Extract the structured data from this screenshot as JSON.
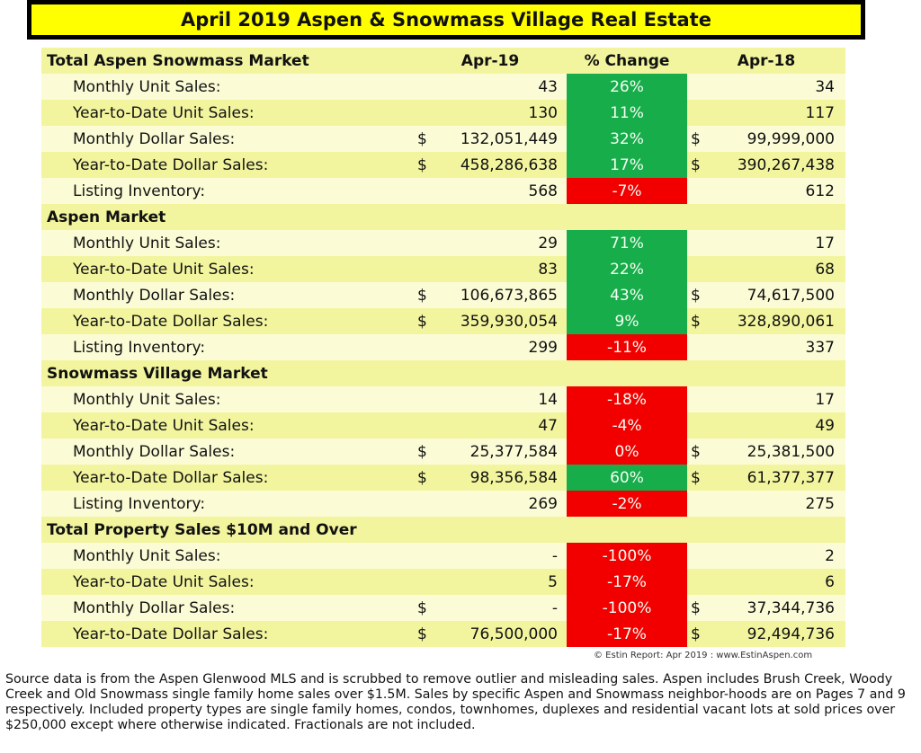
{
  "title": "April 2019 Aspen & Snowmass Village Real Estate",
  "columns": {
    "current": "Apr-19",
    "change": "% Change",
    "prior": "Apr-18"
  },
  "colors": {
    "up": "#17ad4a",
    "down": "#f20000",
    "title_bg": "#ffff00"
  },
  "sections": [
    {
      "name": "Total Aspen Snowmass Market",
      "rows": [
        {
          "label": "Monthly Unit Sales:",
          "cur_dollar": "",
          "cur": "43",
          "change": "26%",
          "dir": "up",
          "prior_dollar": "",
          "prior": "34"
        },
        {
          "label": "Year-to-Date Unit Sales:",
          "cur_dollar": "",
          "cur": "130",
          "change": "11%",
          "dir": "up",
          "prior_dollar": "",
          "prior": "117"
        },
        {
          "label": "Monthly Dollar Sales:",
          "cur_dollar": "$",
          "cur": "132,051,449",
          "change": "32%",
          "dir": "up",
          "prior_dollar": "$",
          "prior": "99,999,000"
        },
        {
          "label": "Year-to-Date Dollar Sales:",
          "cur_dollar": "$",
          "cur": "458,286,638",
          "change": "17%",
          "dir": "up",
          "prior_dollar": "$",
          "prior": "390,267,438"
        },
        {
          "label": "Listing Inventory:",
          "cur_dollar": "",
          "cur": "568",
          "change": "-7%",
          "dir": "down",
          "prior_dollar": "",
          "prior": "612"
        }
      ]
    },
    {
      "name": "Aspen Market",
      "rows": [
        {
          "label": "Monthly Unit Sales:",
          "cur_dollar": "",
          "cur": "29",
          "change": "71%",
          "dir": "up",
          "prior_dollar": "",
          "prior": "17"
        },
        {
          "label": "Year-to-Date Unit Sales:",
          "cur_dollar": "",
          "cur": "83",
          "change": "22%",
          "dir": "up",
          "prior_dollar": "",
          "prior": "68"
        },
        {
          "label": "Monthly Dollar Sales:",
          "cur_dollar": "$",
          "cur": "106,673,865",
          "change": "43%",
          "dir": "up",
          "prior_dollar": "$",
          "prior": "74,617,500"
        },
        {
          "label": "Year-to-Date Dollar Sales:",
          "cur_dollar": "$",
          "cur": "359,930,054",
          "change": "9%",
          "dir": "up",
          "prior_dollar": "$",
          "prior": "328,890,061"
        },
        {
          "label": "Listing Inventory:",
          "cur_dollar": "",
          "cur": "299",
          "change": "-11%",
          "dir": "down",
          "prior_dollar": "",
          "prior": "337"
        }
      ]
    },
    {
      "name": "Snowmass Village Market",
      "rows": [
        {
          "label": "Monthly Unit Sales:",
          "cur_dollar": "",
          "cur": "14",
          "change": "-18%",
          "dir": "down",
          "prior_dollar": "",
          "prior": "17"
        },
        {
          "label": "Year-to-Date Unit Sales:",
          "cur_dollar": "",
          "cur": "47",
          "change": "-4%",
          "dir": "down",
          "prior_dollar": "",
          "prior": "49"
        },
        {
          "label": "Monthly Dollar Sales:",
          "cur_dollar": "$",
          "cur": "25,377,584",
          "change": "0%",
          "dir": "down",
          "prior_dollar": "$",
          "prior": "25,381,500"
        },
        {
          "label": "Year-to-Date Dollar Sales:",
          "cur_dollar": "$",
          "cur": "98,356,584",
          "change": "60%",
          "dir": "up",
          "prior_dollar": "$",
          "prior": "61,377,377"
        },
        {
          "label": "Listing Inventory:",
          "cur_dollar": "",
          "cur": "269",
          "change": "-2%",
          "dir": "down",
          "prior_dollar": "",
          "prior": "275"
        }
      ]
    },
    {
      "name": "Total Property Sales $10M and Over",
      "rows": [
        {
          "label": "Monthly Unit Sales:",
          "cur_dollar": "",
          "cur": "-",
          "change": "-100%",
          "dir": "down",
          "prior_dollar": "",
          "prior": "2"
        },
        {
          "label": "Year-to-Date Unit Sales:",
          "cur_dollar": "",
          "cur": "5",
          "change": "-17%",
          "dir": "down",
          "prior_dollar": "",
          "prior": "6"
        },
        {
          "label": "Monthly Dollar Sales:",
          "cur_dollar": "$",
          "cur": "-",
          "change": "-100%",
          "dir": "down",
          "prior_dollar": "$",
          "prior": "37,344,736"
        },
        {
          "label": "Year-to-Date Dollar Sales:",
          "cur_dollar": "$",
          "cur": "76,500,000",
          "change": "-17%",
          "dir": "down",
          "prior_dollar": "$",
          "prior": "92,494,736"
        }
      ]
    }
  ],
  "credit": "© Estin Report:  Apr 2019 : www.EstinAspen.com",
  "note": "Source data is from the Aspen Glenwood MLS and is scrubbed to remove outlier and misleading sales. Aspen includes Brush Creek, Woody Creek and Old Snowmass single family home sales over $1.5M. Sales by specific Aspen and Snowmass neighbor-hoods are on Pages 7 and 9 respectively. Included property types are single family homes, condos, townhomes, duplexes and residential vacant lots at sold prices over $250,000 except where otherwise indicated. Fractionals are not included."
}
